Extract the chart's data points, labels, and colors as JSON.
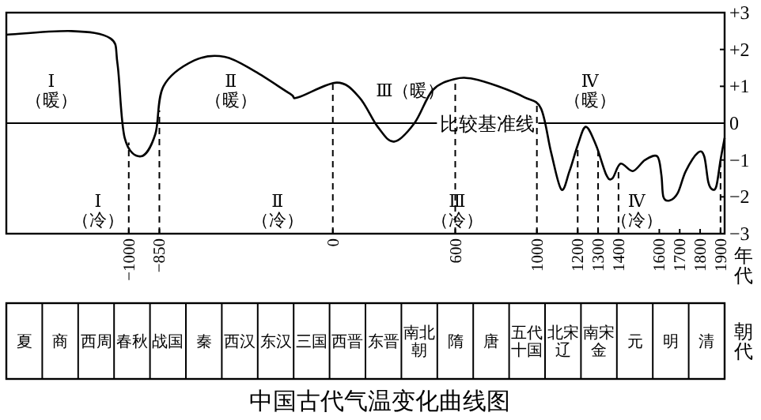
{
  "chart_data": [
    {
      "type": "line",
      "title": "中国古代气温变化曲线图",
      "xlabel": "年代",
      "x": [
        -1600,
        -1280,
        -1090,
        -1055,
        -1020,
        -940,
        -870,
        -830,
        -680,
        -530,
        -380,
        -210,
        -170,
        20,
        130,
        220,
        300,
        400,
        490,
        600,
        690,
        810,
        940,
        1020,
        1070,
        1120,
        1160,
        1200,
        1240,
        1290,
        1340,
        1370,
        1410,
        1470,
        1530,
        1590,
        1610,
        1620,
        1650,
        1690,
        1730,
        1790,
        1820,
        1840,
        1860,
        1880,
        1900,
        1920
      ],
      "series": [
        {
          "color": "#000000",
          "values": [
            2.4,
            2.5,
            2.3,
            1.6,
            -0.4,
            -0.9,
            -0.3,
            1.0,
            1.7,
            1.8,
            1.4,
            0.8,
            0.7,
            1.1,
            0.7,
            -0.1,
            -0.5,
            0.0,
            0.9,
            1.2,
            1.2,
            1.0,
            0.7,
            0.4,
            -0.8,
            -1.8,
            -1.3,
            -0.6,
            -0.1,
            -0.6,
            -1.4,
            -1.5,
            -1.1,
            -1.3,
            -1.0,
            -0.9,
            -1.4,
            -2.0,
            -2.1,
            -1.9,
            -1.3,
            -0.8,
            -0.9,
            -1.6,
            -1.8,
            -1.7,
            -1.0,
            -0.4
          ]
        }
      ],
      "xlim": [
        -1600,
        1920
      ],
      "xticks": [
        {
          "value": -1000,
          "label": "−1000"
        },
        {
          "value": -850,
          "label": "−850"
        },
        0,
        600,
        1000,
        1200,
        1300,
        1400,
        1600,
        1700,
        1800,
        1900
      ],
      "ylim": [
        -3,
        3
      ],
      "yticks": [
        {
          "value": 3,
          "label": "+3"
        },
        {
          "value": 2,
          "label": "+2"
        },
        {
          "value": 1,
          "label": "+1"
        },
        0,
        {
          "value": -1,
          "label": "−1"
        },
        {
          "value": -2,
          "label": "−2"
        },
        {
          "value": -3,
          "label": "−3"
        }
      ],
      "ref_lines": [
        {
          "axis": "y",
          "value": 0,
          "label": "比较基准线",
          "line_style": "solid"
        },
        {
          "axis": "x",
          "value": -1000,
          "line_style": "dashed"
        },
        {
          "axis": "x",
          "value": -850,
          "line_style": "dashed"
        },
        {
          "axis": "x",
          "value": 0,
          "line_style": "dashed"
        },
        {
          "axis": "x",
          "value": 600,
          "line_style": "dashed"
        },
        {
          "axis": "x",
          "value": 1000,
          "line_style": "dashed"
        },
        {
          "axis": "x",
          "value": 1200,
          "line_style": "dashed"
        },
        {
          "axis": "x",
          "value": 1300,
          "line_style": "dashed"
        },
        {
          "axis": "x",
          "value": 1400,
          "line_style": "dashed"
        },
        {
          "axis": "x",
          "value": 1900,
          "line_style": "dashed"
        }
      ],
      "annotations": [
        "Ⅰ\n（暖）",
        "Ⅰ\n（冷）",
        "Ⅱ\n（暖）",
        "Ⅱ\n（冷）",
        "Ⅲ（暖）",
        "Ⅲ\n（冷）",
        "Ⅳ\n（暖）",
        "Ⅳ\n（冷）"
      ],
      "marker": "none",
      "line_style": "solid",
      "grid": false
    },
    {
      "type": "other",
      "ylabel": "朝代",
      "annotations": [
        "夏",
        "商",
        "西周",
        "春秋",
        "战国",
        "秦",
        "西汉",
        "东汉",
        "三国",
        "西晋",
        "东晋",
        "南北朝",
        "隋",
        "唐",
        "五代十国",
        "北宋辽",
        "南宋金",
        "元",
        "明",
        "清"
      ]
    }
  ]
}
